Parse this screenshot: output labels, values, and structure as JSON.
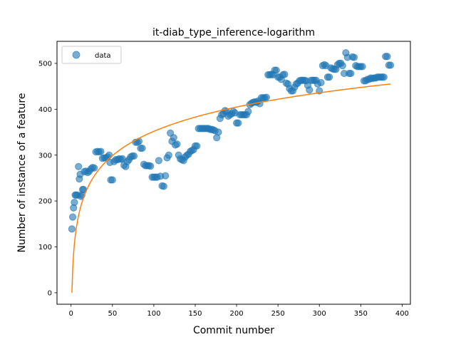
{
  "chart_data": {
    "type": "scatter",
    "title": "it-diab_type_inference-logarithm",
    "xlabel": "Commit number",
    "ylabel": "Number of instance of a feature",
    "xlim": [
      -17,
      410
    ],
    "ylim": [
      -25,
      548
    ],
    "xticks": [
      0,
      50,
      100,
      150,
      200,
      250,
      300,
      350,
      400
    ],
    "yticks": [
      0,
      100,
      200,
      300,
      400,
      500
    ],
    "grid": false,
    "legend": {
      "placement": "top-left",
      "entries": [
        "data"
      ]
    },
    "colors": {
      "data": "#1f77b4",
      "fit": "#ff7f0e"
    },
    "series": [
      {
        "name": "data",
        "kind": "scatter",
        "points": [
          [
            1,
            139
          ],
          [
            2,
            165
          ],
          [
            3,
            185
          ],
          [
            4,
            197
          ],
          [
            5,
            213
          ],
          [
            6,
            213
          ],
          [
            8,
            213
          ],
          [
            9,
            275
          ],
          [
            10,
            248
          ],
          [
            11,
            258
          ],
          [
            12,
            210
          ],
          [
            13,
            213
          ],
          [
            14,
            225
          ],
          [
            15,
            225
          ],
          [
            16,
            264
          ],
          [
            18,
            265
          ],
          [
            20,
            262
          ],
          [
            22,
            265
          ],
          [
            24,
            270
          ],
          [
            26,
            273
          ],
          [
            28,
            272
          ],
          [
            30,
            307
          ],
          [
            32,
            308
          ],
          [
            34,
            307
          ],
          [
            36,
            308
          ],
          [
            38,
            293
          ],
          [
            40,
            294
          ],
          [
            42,
            294
          ],
          [
            44,
            296
          ],
          [
            46,
            300
          ],
          [
            47,
            284
          ],
          [
            48,
            246
          ],
          [
            50,
            246
          ],
          [
            52,
            286
          ],
          [
            54,
            290
          ],
          [
            56,
            290
          ],
          [
            58,
            292
          ],
          [
            60,
            291
          ],
          [
            62,
            292
          ],
          [
            64,
            278
          ],
          [
            66,
            275
          ],
          [
            68,
            286
          ],
          [
            70,
            290
          ],
          [
            72,
            296
          ],
          [
            74,
            298
          ],
          [
            76,
            298
          ],
          [
            78,
            328
          ],
          [
            80,
            328
          ],
          [
            82,
            330
          ],
          [
            84,
            315
          ],
          [
            86,
            315
          ],
          [
            88,
            280
          ],
          [
            90,
            277
          ],
          [
            92,
            277
          ],
          [
            94,
            277
          ],
          [
            96,
            276
          ],
          [
            98,
            252
          ],
          [
            100,
            252
          ],
          [
            102,
            252
          ],
          [
            104,
            252
          ],
          [
            106,
            288
          ],
          [
            108,
            254
          ],
          [
            110,
            233
          ],
          [
            112,
            232
          ],
          [
            114,
            255
          ],
          [
            116,
            294
          ],
          [
            118,
            300
          ],
          [
            120,
            348
          ],
          [
            122,
            330
          ],
          [
            124,
            338
          ],
          [
            126,
            322
          ],
          [
            128,
            324
          ],
          [
            130,
            300
          ],
          [
            132,
            292
          ],
          [
            134,
            290
          ],
          [
            136,
            288
          ],
          [
            138,
            296
          ],
          [
            140,
            300
          ],
          [
            142,
            302
          ],
          [
            144,
            308
          ],
          [
            146,
            310
          ],
          [
            148,
            312
          ],
          [
            150,
            320
          ],
          [
            152,
            320
          ],
          [
            154,
            358
          ],
          [
            156,
            358
          ],
          [
            158,
            358
          ],
          [
            160,
            358
          ],
          [
            162,
            358
          ],
          [
            164,
            358
          ],
          [
            166,
            358
          ],
          [
            168,
            356
          ],
          [
            170,
            356
          ],
          [
            172,
            355
          ],
          [
            174,
            353
          ],
          [
            176,
            338
          ],
          [
            178,
            350
          ],
          [
            180,
            380
          ],
          [
            182,
            388
          ],
          [
            184,
            390
          ],
          [
            186,
            397
          ],
          [
            188,
            395
          ],
          [
            190,
            385
          ],
          [
            192,
            388
          ],
          [
            194,
            390
          ],
          [
            196,
            395
          ],
          [
            198,
            392
          ],
          [
            200,
            370
          ],
          [
            202,
            370
          ],
          [
            204,
            388
          ],
          [
            206,
            388
          ],
          [
            208,
            388
          ],
          [
            210,
            388
          ],
          [
            212,
            388
          ],
          [
            214,
            395
          ],
          [
            216,
            410
          ],
          [
            218,
            413
          ],
          [
            220,
            415
          ],
          [
            222,
            416
          ],
          [
            224,
            415
          ],
          [
            226,
            418
          ],
          [
            228,
            412
          ],
          [
            230,
            425
          ],
          [
            232,
            425
          ],
          [
            234,
            425
          ],
          [
            236,
            426
          ],
          [
            238,
            475
          ],
          [
            240,
            475
          ],
          [
            242,
            476
          ],
          [
            244,
            475
          ],
          [
            246,
            485
          ],
          [
            248,
            485
          ],
          [
            250,
            470
          ],
          [
            252,
            470
          ],
          [
            254,
            465
          ],
          [
            256,
            475
          ],
          [
            258,
            476
          ],
          [
            260,
            457
          ],
          [
            262,
            455
          ],
          [
            264,
            445
          ],
          [
            266,
            440
          ],
          [
            268,
            440
          ],
          [
            270,
            448
          ],
          [
            272,
            455
          ],
          [
            274,
            457
          ],
          [
            276,
            462
          ],
          [
            278,
            463
          ],
          [
            280,
            463
          ],
          [
            282,
            463
          ],
          [
            284,
            462
          ],
          [
            286,
            452
          ],
          [
            288,
            442
          ],
          [
            290,
            463
          ],
          [
            292,
            463
          ],
          [
            294,
            463
          ],
          [
            296,
            463
          ],
          [
            298,
            455
          ],
          [
            300,
            440
          ],
          [
            302,
            458
          ],
          [
            304,
            495
          ],
          [
            306,
            497
          ],
          [
            308,
            495
          ],
          [
            310,
            470
          ],
          [
            312,
            470
          ],
          [
            314,
            490
          ],
          [
            316,
            488
          ],
          [
            318,
            487
          ],
          [
            320,
            487
          ],
          [
            322,
            497
          ],
          [
            324,
            500
          ],
          [
            326,
            500
          ],
          [
            328,
            495
          ],
          [
            330,
            478
          ],
          [
            332,
            523
          ],
          [
            334,
            513
          ],
          [
            336,
            478
          ],
          [
            338,
            478
          ],
          [
            340,
            514
          ],
          [
            342,
            513
          ],
          [
            344,
            495
          ],
          [
            346,
            493
          ],
          [
            348,
            493
          ],
          [
            350,
            493
          ],
          [
            352,
            493
          ],
          [
            354,
            462
          ],
          [
            356,
            462
          ],
          [
            358,
            465
          ],
          [
            360,
            465
          ],
          [
            362,
            468
          ],
          [
            364,
            467
          ],
          [
            366,
            468
          ],
          [
            368,
            468
          ],
          [
            370,
            470
          ],
          [
            372,
            470
          ],
          [
            374,
            470
          ],
          [
            376,
            470
          ],
          [
            378,
            470
          ],
          [
            380,
            515
          ],
          [
            382,
            515
          ],
          [
            384,
            496
          ],
          [
            386,
            496
          ]
        ]
      },
      {
        "name": "",
        "kind": "line",
        "function": "log",
        "a": 76.4,
        "b": 0.0,
        "x_range": [
          1,
          386
        ]
      }
    ]
  }
}
